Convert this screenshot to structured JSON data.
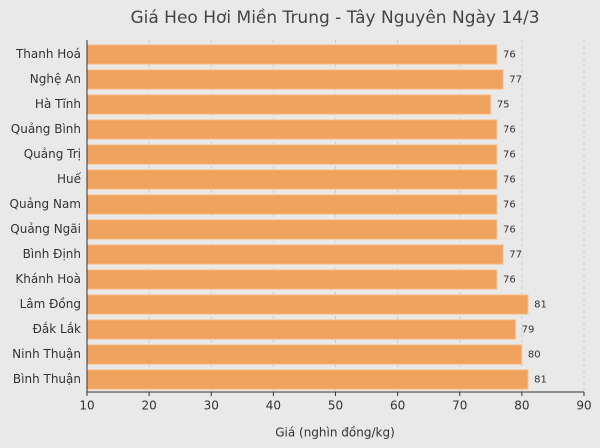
{
  "chart_data": {
    "type": "barh",
    "title": "Giá Heo Hơi Miền Trung - Tây Nguyên Ngày 14/3",
    "xlabel": "Giá (nghìn đồng/kg)",
    "categories": [
      "Thanh Hoá",
      "Nghệ An",
      "Hà Tĩnh",
      "Quảng Bình",
      "Quảng Trị",
      "Huế",
      "Quảng Nam",
      "Quảng Ngãi",
      "Bình Định",
      "Khánh Hoà",
      "Lâm Đồng",
      "Đắk Lắk",
      "Ninh Thuận",
      "Bình Thuận"
    ],
    "values": [
      76,
      77,
      75,
      76,
      76,
      76,
      76,
      76,
      77,
      76,
      81,
      79,
      80,
      81
    ],
    "color": "#f0a35e",
    "xlim": [
      10,
      90
    ],
    "xticks": [
      10,
      20,
      30,
      40,
      50,
      60,
      70,
      80,
      90
    ],
    "grid": true
  }
}
